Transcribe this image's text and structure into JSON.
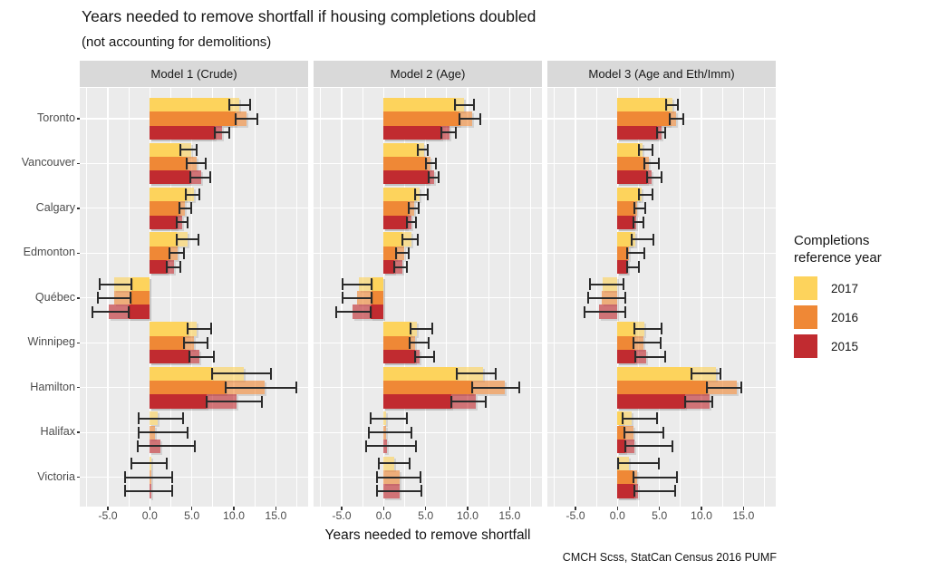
{
  "title": "Years needed to remove shortfall if housing completions doubled",
  "subtitle": "(not accounting for demolitions)",
  "caption": "CMCH Scss, StatCan Census 2016 PUMF",
  "legend": {
    "title": "Completions reference year",
    "entries": [
      {
        "label": "2017",
        "color": "#FDD35C"
      },
      {
        "label": "2016",
        "color": "#EF8836"
      },
      {
        "label": "2015",
        "color": "#C12B30"
      }
    ]
  },
  "chart_data": {
    "type": "bar",
    "orientation": "horizontal",
    "title": "Years needed to remove shortfall if housing completions doubled",
    "subtitle": "(not accounting for demolitions)",
    "xlabel": "Years needed to remove shortfall",
    "xlim": [
      -8.35,
      18.85
    ],
    "xticks": [
      -5.0,
      0.0,
      5.0,
      10.0,
      15.0
    ],
    "xtick_labels": [
      "-5.0",
      "0.0",
      "5.0",
      "10.0",
      "15.0"
    ],
    "minor_xticks": [
      -7.5,
      -2.5,
      2.5,
      7.5,
      12.5,
      17.5
    ],
    "grid": "white gridlines on gray panel",
    "legend_position": "right",
    "categories": [
      "Toronto",
      "Vancouver",
      "Calgary",
      "Edmonton",
      "Québec",
      "Winnipeg",
      "Hamilton",
      "Halifax",
      "Victoria"
    ],
    "series_years": [
      "2017",
      "2016",
      "2015"
    ],
    "value_format": "[estimate, ci_low, ci_high] in years; bar solid from 0 to CI bound nearest zero, translucent to estimate, whiskers span CI",
    "facets": [
      {
        "label": "Model 1 (Crude)",
        "values": {
          "Toronto": {
            "2017": [
              10.7,
              9.5,
              11.9
            ],
            "2016": [
              11.5,
              10.2,
              12.8
            ],
            "2015": [
              8.6,
              7.7,
              9.5
            ]
          },
          "Vancouver": {
            "2017": [
              4.9,
              3.6,
              5.6
            ],
            "2016": [
              5.6,
              4.4,
              6.7
            ],
            "2015": [
              6.1,
              4.8,
              7.2
            ]
          },
          "Calgary": {
            "2017": [
              5.3,
              4.3,
              5.9
            ],
            "2016": [
              4.2,
              3.5,
              4.9
            ],
            "2015": [
              3.9,
              3.2,
              4.5
            ]
          },
          "Edmonton": {
            "2017": [
              4.5,
              3.2,
              5.8
            ],
            "2016": [
              3.3,
              2.3,
              4.1
            ],
            "2015": [
              2.9,
              2.0,
              3.6
            ]
          },
          "Québec": {
            "2017": [
              -4.3,
              -6.0,
              -2.2
            ],
            "2016": [
              -4.3,
              -6.2,
              -2.3
            ],
            "2015": [
              -4.9,
              -6.8,
              -2.5
            ]
          },
          "Winnipeg": {
            "2017": [
              5.6,
              4.5,
              7.3
            ],
            "2016": [
              5.3,
              4.1,
              6.9
            ],
            "2015": [
              5.9,
              4.7,
              7.6
            ]
          },
          "Hamilton": {
            "2017": [
              11.2,
              7.4,
              14.4
            ],
            "2016": [
              13.7,
              9.0,
              17.5
            ],
            "2015": [
              10.3,
              6.8,
              13.3
            ]
          },
          "Halifax": {
            "2017": [
              0.9,
              -1.3,
              4.0
            ],
            "2016": [
              0.6,
              -1.3,
              4.5
            ],
            "2015": [
              1.3,
              -1.4,
              5.4
            ]
          },
          "Victoria": {
            "2017": [
              0.15,
              -2.2,
              2.0
            ],
            "2016": [
              0.15,
              -2.9,
              2.7
            ],
            "2015": [
              0.15,
              -2.9,
              2.7
            ]
          }
        }
      },
      {
        "label": "Model 2 (Age)",
        "values": {
          "Toronto": {
            "2017": [
              9.6,
              8.5,
              10.8
            ],
            "2016": [
              10.5,
              9.0,
              11.5
            ],
            "2015": [
              7.8,
              6.9,
              8.6
            ]
          },
          "Vancouver": {
            "2017": [
              4.8,
              4.1,
              5.3
            ],
            "2016": [
              5.6,
              5.0,
              6.2
            ],
            "2015": [
              6.0,
              5.4,
              6.5
            ]
          },
          "Calgary": {
            "2017": [
              4.3,
              3.7,
              5.2
            ],
            "2016": [
              3.6,
              3.0,
              4.2
            ],
            "2015": [
              3.3,
              2.8,
              3.8
            ]
          },
          "Edmonton": {
            "2017": [
              3.3,
              2.2,
              4.1
            ],
            "2016": [
              2.4,
              1.5,
              3.0
            ],
            "2015": [
              2.2,
              1.3,
              2.8
            ]
          },
          "Québec": {
            "2017": [
              -3.0,
              -4.9,
              -1.4
            ],
            "2016": [
              -3.2,
              -4.9,
              -1.4
            ],
            "2015": [
              -3.7,
              -5.6,
              -1.5
            ]
          },
          "Winnipeg": {
            "2017": [
              4.0,
              3.2,
              5.8
            ],
            "2016": [
              3.7,
              3.1,
              5.4
            ],
            "2015": [
              4.3,
              3.7,
              6.0
            ]
          },
          "Hamilton": {
            "2017": [
              11.8,
              8.7,
              13.3
            ],
            "2016": [
              14.4,
              10.5,
              16.1
            ],
            "2015": [
              11.0,
              8.1,
              12.2
            ]
          },
          "Halifax": {
            "2017": [
              0.3,
              -1.5,
              2.8
            ],
            "2016": [
              0.3,
              -1.8,
              3.3
            ],
            "2015": [
              0.4,
              -2.1,
              3.9
            ]
          },
          "Victoria": {
            "2017": [
              1.3,
              -0.6,
              3.1
            ],
            "2016": [
              1.9,
              -0.8,
              4.4
            ],
            "2015": [
              1.9,
              -0.8,
              4.5
            ]
          }
        }
      },
      {
        "label": "Model 3 (Age and Eth/Imm)",
        "values": {
          "Toronto": {
            "2017": [
              6.5,
              5.8,
              7.2
            ],
            "2016": [
              7.0,
              6.2,
              7.8
            ],
            "2015": [
              5.3,
              4.7,
              5.7
            ]
          },
          "Vancouver": {
            "2017": [
              3.0,
              2.6,
              4.2
            ],
            "2016": [
              3.7,
              3.2,
              4.9
            ],
            "2015": [
              4.1,
              3.5,
              5.2
            ]
          },
          "Calgary": {
            "2017": [
              2.9,
              2.5,
              4.2
            ],
            "2016": [
              2.3,
              2.0,
              3.3
            ],
            "2015": [
              2.2,
              1.9,
              3.1
            ]
          },
          "Edmonton": {
            "2017": [
              2.1,
              1.7,
              4.3
            ],
            "2016": [
              1.4,
              1.1,
              3.2
            ],
            "2015": [
              1.3,
              1.1,
              2.5
            ]
          },
          "Québec": {
            "2017": [
              -1.8,
              -3.3,
              0.7
            ],
            "2016": [
              -1.9,
              -3.5,
              0.9
            ],
            "2015": [
              -2.2,
              -3.9,
              0.9
            ]
          },
          "Winnipeg": {
            "2017": [
              3.2,
              2.0,
              5.3
            ],
            "2016": [
              3.1,
              1.9,
              5.1
            ],
            "2015": [
              3.4,
              2.1,
              5.7
            ]
          },
          "Hamilton": {
            "2017": [
              11.7,
              8.8,
              12.3
            ],
            "2016": [
              14.2,
              10.6,
              14.8
            ],
            "2015": [
              11.0,
              8.1,
              11.3
            ]
          },
          "Halifax": {
            "2017": [
              1.7,
              0.6,
              4.7
            ],
            "2016": [
              1.9,
              0.8,
              5.5
            ],
            "2015": [
              2.0,
              0.9,
              6.5
            ]
          },
          "Victoria": {
            "2017": [
              1.4,
              0.1,
              4.9
            ],
            "2016": [
              2.3,
              1.9,
              7.1
            ],
            "2015": [
              2.4,
              2.0,
              6.9
            ]
          }
        }
      }
    ]
  }
}
